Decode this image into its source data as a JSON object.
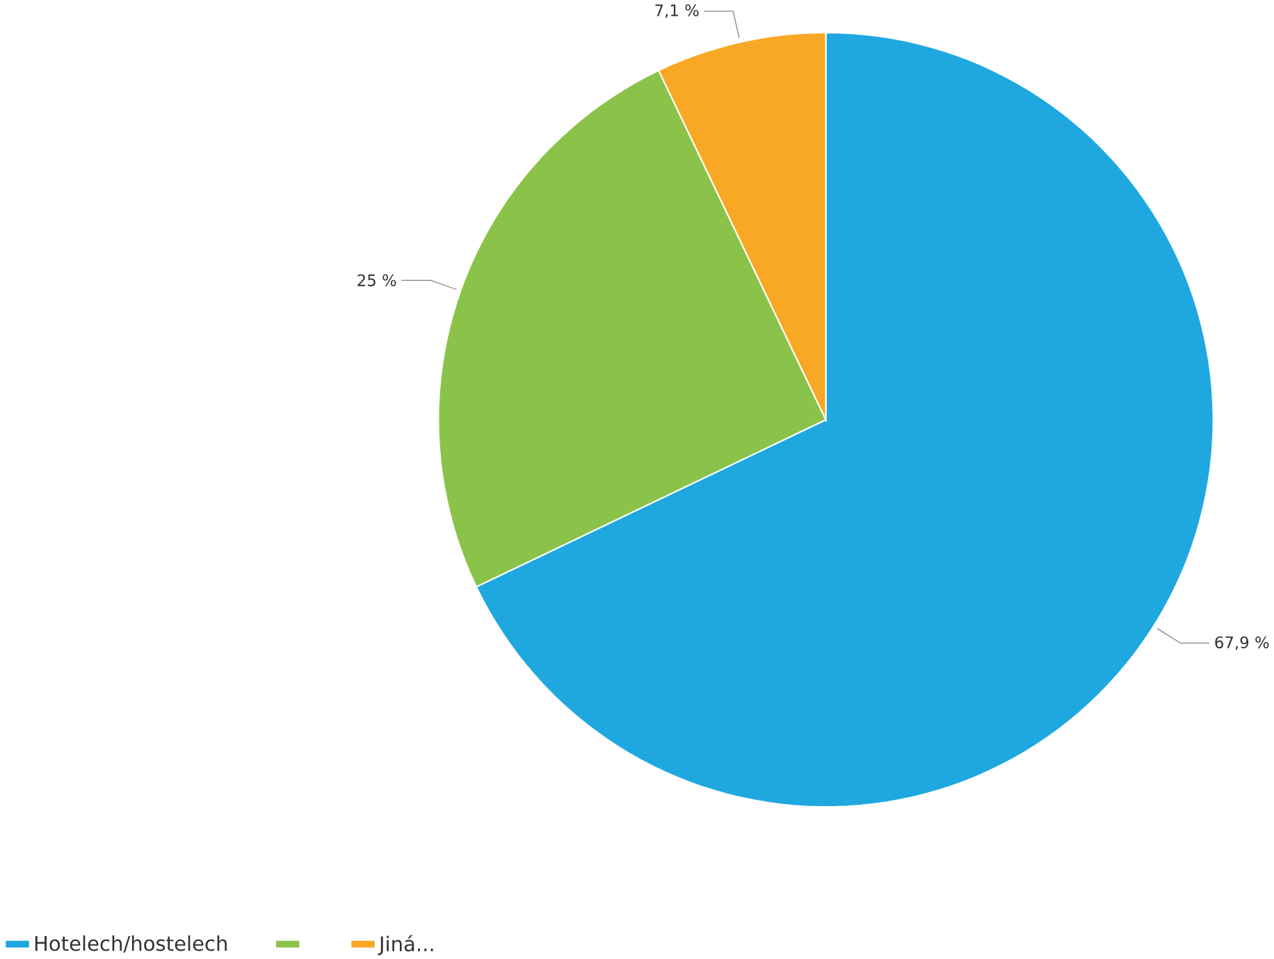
{
  "chart_data": {
    "type": "pie",
    "categories": [
      "Hotelech/hostelech",
      null,
      "Jiná..."
    ],
    "values": [
      67.9,
      25,
      7.1
    ],
    "colors": [
      "#1fa8e0",
      "#8bc34a",
      "#f9a825"
    ],
    "value_labels": [
      "67,9 %",
      "25 %",
      "7,1 %"
    ],
    "legend": "bottom"
  }
}
